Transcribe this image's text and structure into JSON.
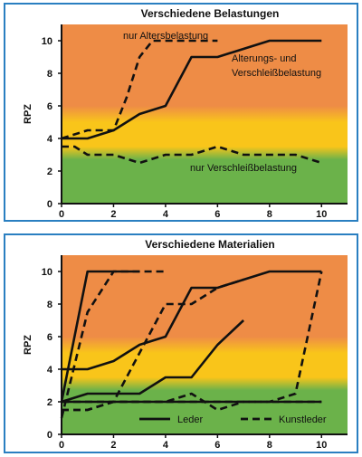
{
  "colors": {
    "bg_orange": "#ee8c46",
    "bg_yellow": "#f9c51a",
    "bg_green": "#6bb24a",
    "frame": "#2a7fc1",
    "line": "#111111"
  },
  "chart_data": [
    {
      "type": "line",
      "title": "Verschiedene Belastungen",
      "xlabel": "",
      "ylabel": "RPZ",
      "xlim": [
        0,
        11
      ],
      "ylim": [
        0,
        11
      ],
      "xticks": [
        "0",
        "2",
        "4",
        "6",
        "8",
        "10"
      ],
      "yticks": [
        "0",
        "2",
        "4",
        "6",
        "8",
        "10"
      ],
      "background_zones": [
        {
          "from": 0,
          "to": 3,
          "color": "green"
        },
        {
          "from": 3,
          "to": 5.5,
          "color": "yellow"
        },
        {
          "from": 5.5,
          "to": 11,
          "color": "orange"
        }
      ],
      "series": [
        {
          "style": "dashed",
          "label": "nur Altersbelastung",
          "x": [
            0,
            1,
            2,
            2.5,
            3,
            3.5,
            4,
            5,
            6
          ],
          "y": [
            4,
            4.5,
            4.5,
            6.5,
            9,
            10,
            10,
            10,
            10
          ]
        },
        {
          "style": "solid",
          "label": "Alterungs- und Verschleißbelastung",
          "x": [
            0,
            1,
            2,
            3,
            4,
            5,
            6,
            7,
            8,
            9,
            10
          ],
          "y": [
            4,
            4,
            4.5,
            5.5,
            6,
            9,
            9,
            9.5,
            10,
            10,
            10
          ]
        },
        {
          "style": "dashed",
          "label": "nur Verschleißbelastung",
          "x": [
            0,
            0.5,
            1,
            2,
            3,
            4,
            5,
            6,
            7,
            8,
            9,
            10
          ],
          "y": [
            3.5,
            3.5,
            3,
            3,
            2.5,
            3,
            3,
            3.5,
            3,
            3,
            3,
            2.5
          ]
        }
      ],
      "annotations": [
        {
          "text": "nur Altersbelastung"
        },
        {
          "text": "Alterungs- und"
        },
        {
          "text": "Verschleißbelastung"
        },
        {
          "text": "nur Verschleißbelastung"
        }
      ]
    },
    {
      "type": "line",
      "title": "Verschiedene Materialien",
      "xlabel": "",
      "ylabel": "RPZ",
      "xlim": [
        0,
        11
      ],
      "ylim": [
        0,
        11
      ],
      "xticks": [
        "0",
        "2",
        "4",
        "6",
        "8",
        "10"
      ],
      "yticks": [
        "0",
        "2",
        "4",
        "6",
        "8",
        "10"
      ],
      "background_zones": [
        {
          "from": 0,
          "to": 3,
          "color": "green"
        },
        {
          "from": 3,
          "to": 5.5,
          "color": "yellow"
        },
        {
          "from": 5.5,
          "to": 11,
          "color": "orange"
        }
      ],
      "legend": [
        {
          "name": "Leder",
          "style": "solid"
        },
        {
          "name": "Kunstleder",
          "style": "dashed"
        }
      ],
      "series": [
        {
          "style": "solid",
          "x": [
            0,
            1,
            2,
            3
          ],
          "y": [
            2,
            10,
            10,
            10
          ]
        },
        {
          "style": "solid",
          "x": [
            0,
            1,
            2,
            3,
            4,
            5,
            6,
            7,
            8,
            9,
            10
          ],
          "y": [
            4,
            4,
            4.5,
            5.5,
            6,
            9,
            9,
            9.5,
            10,
            10,
            10
          ]
        },
        {
          "style": "solid",
          "x": [
            0,
            1,
            2,
            3,
            4,
            5,
            6,
            7
          ],
          "y": [
            2,
            2.5,
            2.5,
            2.5,
            3.5,
            3.5,
            5.5,
            7
          ]
        },
        {
          "style": "solid",
          "x": [
            0,
            1,
            2,
            3,
            4,
            5,
            6,
            7,
            8,
            9,
            10
          ],
          "y": [
            2,
            2,
            2,
            2,
            2,
            2,
            2,
            2,
            2,
            2,
            2
          ]
        },
        {
          "style": "dashed",
          "x": [
            0,
            1,
            2,
            3,
            4
          ],
          "y": [
            1,
            7.5,
            10,
            10,
            10
          ]
        },
        {
          "style": "dashed",
          "x": [
            0,
            1,
            2,
            3,
            4,
            5,
            6,
            7
          ],
          "y": [
            1.5,
            1.5,
            2,
            5,
            8,
            8,
            9,
            9.5
          ]
        },
        {
          "style": "dashed",
          "x": [
            0,
            1,
            2,
            3,
            4,
            5,
            6,
            7,
            8,
            9,
            10
          ],
          "y": [
            2,
            2,
            2,
            2,
            2,
            2.5,
            1.5,
            2,
            2,
            2.5,
            10
          ]
        },
        {
          "style": "dashed",
          "x": [
            0,
            1,
            2,
            3,
            4,
            5,
            6,
            7,
            8,
            9,
            10
          ],
          "y": [
            1.5,
            1.5,
            2,
            2,
            2,
            2,
            2,
            2,
            2,
            2,
            2
          ]
        }
      ]
    }
  ]
}
